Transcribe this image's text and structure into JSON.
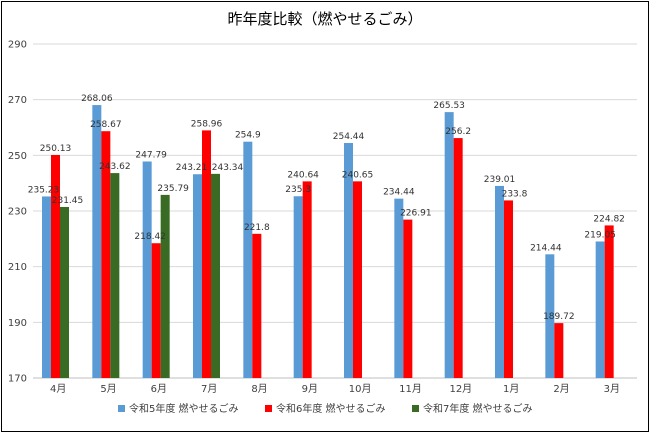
{
  "chart_data": {
    "type": "bar",
    "title": "昨年度比較（燃やせるごみ）",
    "categories": [
      "4月",
      "5月",
      "6月",
      "7月",
      "8月",
      "9月",
      "10月",
      "11月",
      "12月",
      "1月",
      "2月",
      "3月"
    ],
    "series": [
      {
        "name": "令和5年度 燃やせるごみ",
        "color": "#5B9BD5",
        "values": [
          235.23,
          268.06,
          247.79,
          243.21,
          254.9,
          235.3,
          254.44,
          234.44,
          265.53,
          239.01,
          214.44,
          219.05
        ],
        "labels": [
          "235.23",
          "268.06",
          "247.79",
          "243.21",
          "254.9",
          "235.3",
          "254.44",
          "234.44",
          "265.53",
          "239.01",
          "214.44",
          "219.05"
        ]
      },
      {
        "name": "令和6年度 燃やせるごみ",
        "color": "#FF0000",
        "values": [
          250.13,
          258.67,
          218.42,
          258.96,
          221.8,
          240.64,
          240.65,
          226.91,
          256.2,
          233.8,
          189.72,
          224.82
        ],
        "labels": [
          "250.13",
          "258.67",
          "218.42",
          "258.96",
          "221.8",
          "240.64",
          "240.65",
          "226.91",
          "256.2",
          "233.8",
          "189.72",
          "224.82"
        ]
      },
      {
        "name": "令和7年度 燃やせるごみ",
        "color": "#3A6B24",
        "values": [
          231.45,
          243.62,
          235.79,
          243.34,
          null,
          null,
          null,
          null,
          null,
          null,
          null,
          null
        ],
        "labels": [
          "231.45",
          "243.62",
          "235.79",
          "243.34",
          "",
          "",
          "",
          "",
          "",
          "",
          "",
          ""
        ]
      }
    ],
    "ylim": [
      170,
      290
    ],
    "yticks": [
      170,
      190,
      210,
      230,
      250,
      270,
      290
    ],
    "grid": true,
    "legend": "bottom"
  }
}
